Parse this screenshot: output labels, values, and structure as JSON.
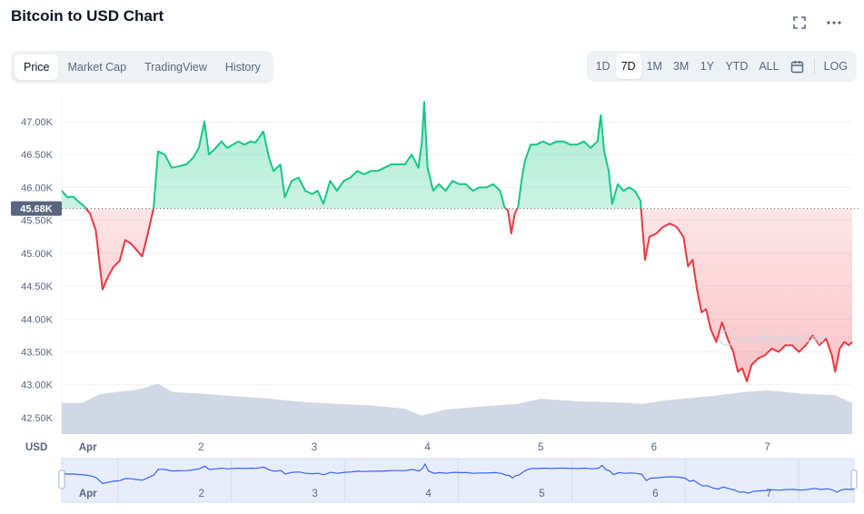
{
  "title": "Bitcoin to USD Chart",
  "tabs": [
    {
      "label": "Price",
      "active": true
    },
    {
      "label": "Market Cap",
      "active": false
    },
    {
      "label": "TradingView",
      "active": false
    },
    {
      "label": "History",
      "active": false
    }
  ],
  "ranges": [
    {
      "label": "1D",
      "active": false
    },
    {
      "label": "7D",
      "active": true
    },
    {
      "label": "1M",
      "active": false
    },
    {
      "label": "3M",
      "active": false
    },
    {
      "label": "1Y",
      "active": false
    },
    {
      "label": "YTD",
      "active": false
    },
    {
      "label": "ALL",
      "active": false
    }
  ],
  "log_label": "LOG",
  "icons": {
    "fullscreen": "fullscreen-icon",
    "more": "more-icon",
    "calendar": "calendar-icon"
  },
  "colors": {
    "up": "#16c784",
    "down": "#ea3943",
    "volume": "#cfd6e4",
    "navigator": "#3861fb"
  },
  "watermark": "CoinMarketCap",
  "chart_data": {
    "type": "line",
    "title": "Bitcoin to USD Chart",
    "unit_label": "USD",
    "reference_value": 45680,
    "reference_label": "45.68K",
    "ylim": [
      42250,
      47400
    ],
    "y_ticks": [
      "42.50K",
      "43.00K",
      "43.50K",
      "44.00K",
      "44.50K",
      "45.00K",
      "45.50K",
      "46.00K",
      "46.50K",
      "47.00K"
    ],
    "y_tick_values": [
      42500,
      43000,
      43500,
      44000,
      44500,
      45000,
      45500,
      46000,
      46500,
      47000
    ],
    "x_ticks": [
      "Apr",
      "2",
      "3",
      "4",
      "5",
      "6",
      "7"
    ],
    "x_tick_days": [
      1,
      2,
      3,
      4,
      5,
      6,
      7
    ],
    "xlim": [
      0.77,
      7.75
    ],
    "series": [
      {
        "values": [
          [
            0.77,
            45950
          ],
          [
            0.82,
            45850
          ],
          [
            0.87,
            45860
          ],
          [
            0.92,
            45780
          ],
          [
            0.97,
            45710
          ],
          [
            1.02,
            45600
          ],
          [
            1.07,
            45350
          ],
          [
            1.1,
            44900
          ],
          [
            1.13,
            44450
          ],
          [
            1.18,
            44650
          ],
          [
            1.23,
            44800
          ],
          [
            1.28,
            44880
          ],
          [
            1.33,
            45200
          ],
          [
            1.38,
            45150
          ],
          [
            1.43,
            45050
          ],
          [
            1.48,
            44950
          ],
          [
            1.53,
            45300
          ],
          [
            1.58,
            45680
          ],
          [
            1.62,
            46550
          ],
          [
            1.68,
            46500
          ],
          [
            1.74,
            46300
          ],
          [
            1.8,
            46320
          ],
          [
            1.87,
            46350
          ],
          [
            1.93,
            46450
          ],
          [
            1.98,
            46600
          ],
          [
            2.03,
            47000
          ],
          [
            2.07,
            46500
          ],
          [
            2.13,
            46600
          ],
          [
            2.18,
            46700
          ],
          [
            2.23,
            46600
          ],
          [
            2.28,
            46650
          ],
          [
            2.33,
            46700
          ],
          [
            2.38,
            46650
          ],
          [
            2.44,
            46700
          ],
          [
            2.48,
            46680
          ],
          [
            2.55,
            46850
          ],
          [
            2.6,
            46450
          ],
          [
            2.64,
            46250
          ],
          [
            2.7,
            46350
          ],
          [
            2.74,
            45850
          ],
          [
            2.8,
            46100
          ],
          [
            2.86,
            46150
          ],
          [
            2.92,
            45950
          ],
          [
            2.98,
            45900
          ],
          [
            3.03,
            45950
          ],
          [
            3.08,
            45750
          ],
          [
            3.14,
            46100
          ],
          [
            3.2,
            45950
          ],
          [
            3.26,
            46100
          ],
          [
            3.32,
            46150
          ],
          [
            3.38,
            46250
          ],
          [
            3.44,
            46200
          ],
          [
            3.5,
            46250
          ],
          [
            3.56,
            46250
          ],
          [
            3.62,
            46300
          ],
          [
            3.68,
            46350
          ],
          [
            3.74,
            46350
          ],
          [
            3.8,
            46350
          ],
          [
            3.86,
            46500
          ],
          [
            3.92,
            46300
          ],
          [
            3.95,
            46700
          ],
          [
            3.97,
            47300
          ],
          [
            4.0,
            46300
          ],
          [
            4.05,
            45950
          ],
          [
            4.1,
            46050
          ],
          [
            4.16,
            45950
          ],
          [
            4.22,
            46100
          ],
          [
            4.28,
            46050
          ],
          [
            4.34,
            46050
          ],
          [
            4.4,
            45950
          ],
          [
            4.46,
            46000
          ],
          [
            4.52,
            46000
          ],
          [
            4.58,
            46050
          ],
          [
            4.64,
            45950
          ],
          [
            4.68,
            45700
          ],
          [
            4.71,
            45650
          ],
          [
            4.74,
            45300
          ],
          [
            4.77,
            45600
          ],
          [
            4.8,
            45700
          ],
          [
            4.83,
            46100
          ],
          [
            4.86,
            46400
          ],
          [
            4.91,
            46650
          ],
          [
            4.96,
            46650
          ],
          [
            5.02,
            46700
          ],
          [
            5.08,
            46650
          ],
          [
            5.14,
            46700
          ],
          [
            5.2,
            46700
          ],
          [
            5.26,
            46650
          ],
          [
            5.32,
            46650
          ],
          [
            5.38,
            46700
          ],
          [
            5.44,
            46600
          ],
          [
            5.5,
            46700
          ],
          [
            5.53,
            47100
          ],
          [
            5.56,
            46550
          ],
          [
            5.6,
            46250
          ],
          [
            5.63,
            45750
          ],
          [
            5.68,
            46050
          ],
          [
            5.73,
            45950
          ],
          [
            5.78,
            46000
          ],
          [
            5.83,
            45950
          ],
          [
            5.88,
            45800
          ],
          [
            5.92,
            44900
          ],
          [
            5.96,
            45250
          ],
          [
            6.02,
            45300
          ],
          [
            6.08,
            45400
          ],
          [
            6.14,
            45450
          ],
          [
            6.2,
            45400
          ],
          [
            6.26,
            45250
          ],
          [
            6.3,
            44800
          ],
          [
            6.34,
            44900
          ],
          [
            6.38,
            44450
          ],
          [
            6.42,
            44100
          ],
          [
            6.46,
            44150
          ],
          [
            6.5,
            43850
          ],
          [
            6.55,
            43650
          ],
          [
            6.6,
            43950
          ],
          [
            6.65,
            43700
          ],
          [
            6.7,
            43500
          ],
          [
            6.74,
            43200
          ],
          [
            6.78,
            43250
          ],
          [
            6.82,
            43050
          ],
          [
            6.86,
            43300
          ],
          [
            6.92,
            43400
          ],
          [
            6.98,
            43450
          ],
          [
            7.04,
            43550
          ],
          [
            7.1,
            43500
          ],
          [
            7.16,
            43600
          ],
          [
            7.22,
            43600
          ],
          [
            7.28,
            43500
          ],
          [
            7.34,
            43600
          ],
          [
            7.4,
            43750
          ],
          [
            7.46,
            43600
          ],
          [
            7.52,
            43700
          ],
          [
            7.57,
            43450
          ],
          [
            7.6,
            43200
          ],
          [
            7.64,
            43550
          ],
          [
            7.68,
            43650
          ],
          [
            7.72,
            43600
          ],
          [
            7.75,
            43650
          ]
        ]
      }
    ],
    "volume": [
      [
        0.77,
        0.37
      ],
      [
        0.95,
        0.37
      ],
      [
        1.1,
        0.47
      ],
      [
        1.25,
        0.5
      ],
      [
        1.45,
        0.53
      ],
      [
        1.62,
        0.6
      ],
      [
        1.75,
        0.5
      ],
      [
        2.0,
        0.48
      ],
      [
        2.3,
        0.45
      ],
      [
        2.6,
        0.42
      ],
      [
        2.9,
        0.38
      ],
      [
        3.2,
        0.36
      ],
      [
        3.5,
        0.34
      ],
      [
        3.8,
        0.3
      ],
      [
        3.95,
        0.22
      ],
      [
        4.15,
        0.29
      ],
      [
        4.5,
        0.33
      ],
      [
        4.8,
        0.36
      ],
      [
        5.0,
        0.42
      ],
      [
        5.3,
        0.39
      ],
      [
        5.6,
        0.38
      ],
      [
        5.9,
        0.36
      ],
      [
        6.1,
        0.4
      ],
      [
        6.5,
        0.45
      ],
      [
        6.8,
        0.5
      ],
      [
        7.0,
        0.52
      ],
      [
        7.3,
        0.48
      ],
      [
        7.6,
        0.46
      ],
      [
        7.75,
        0.37
      ]
    ]
  }
}
